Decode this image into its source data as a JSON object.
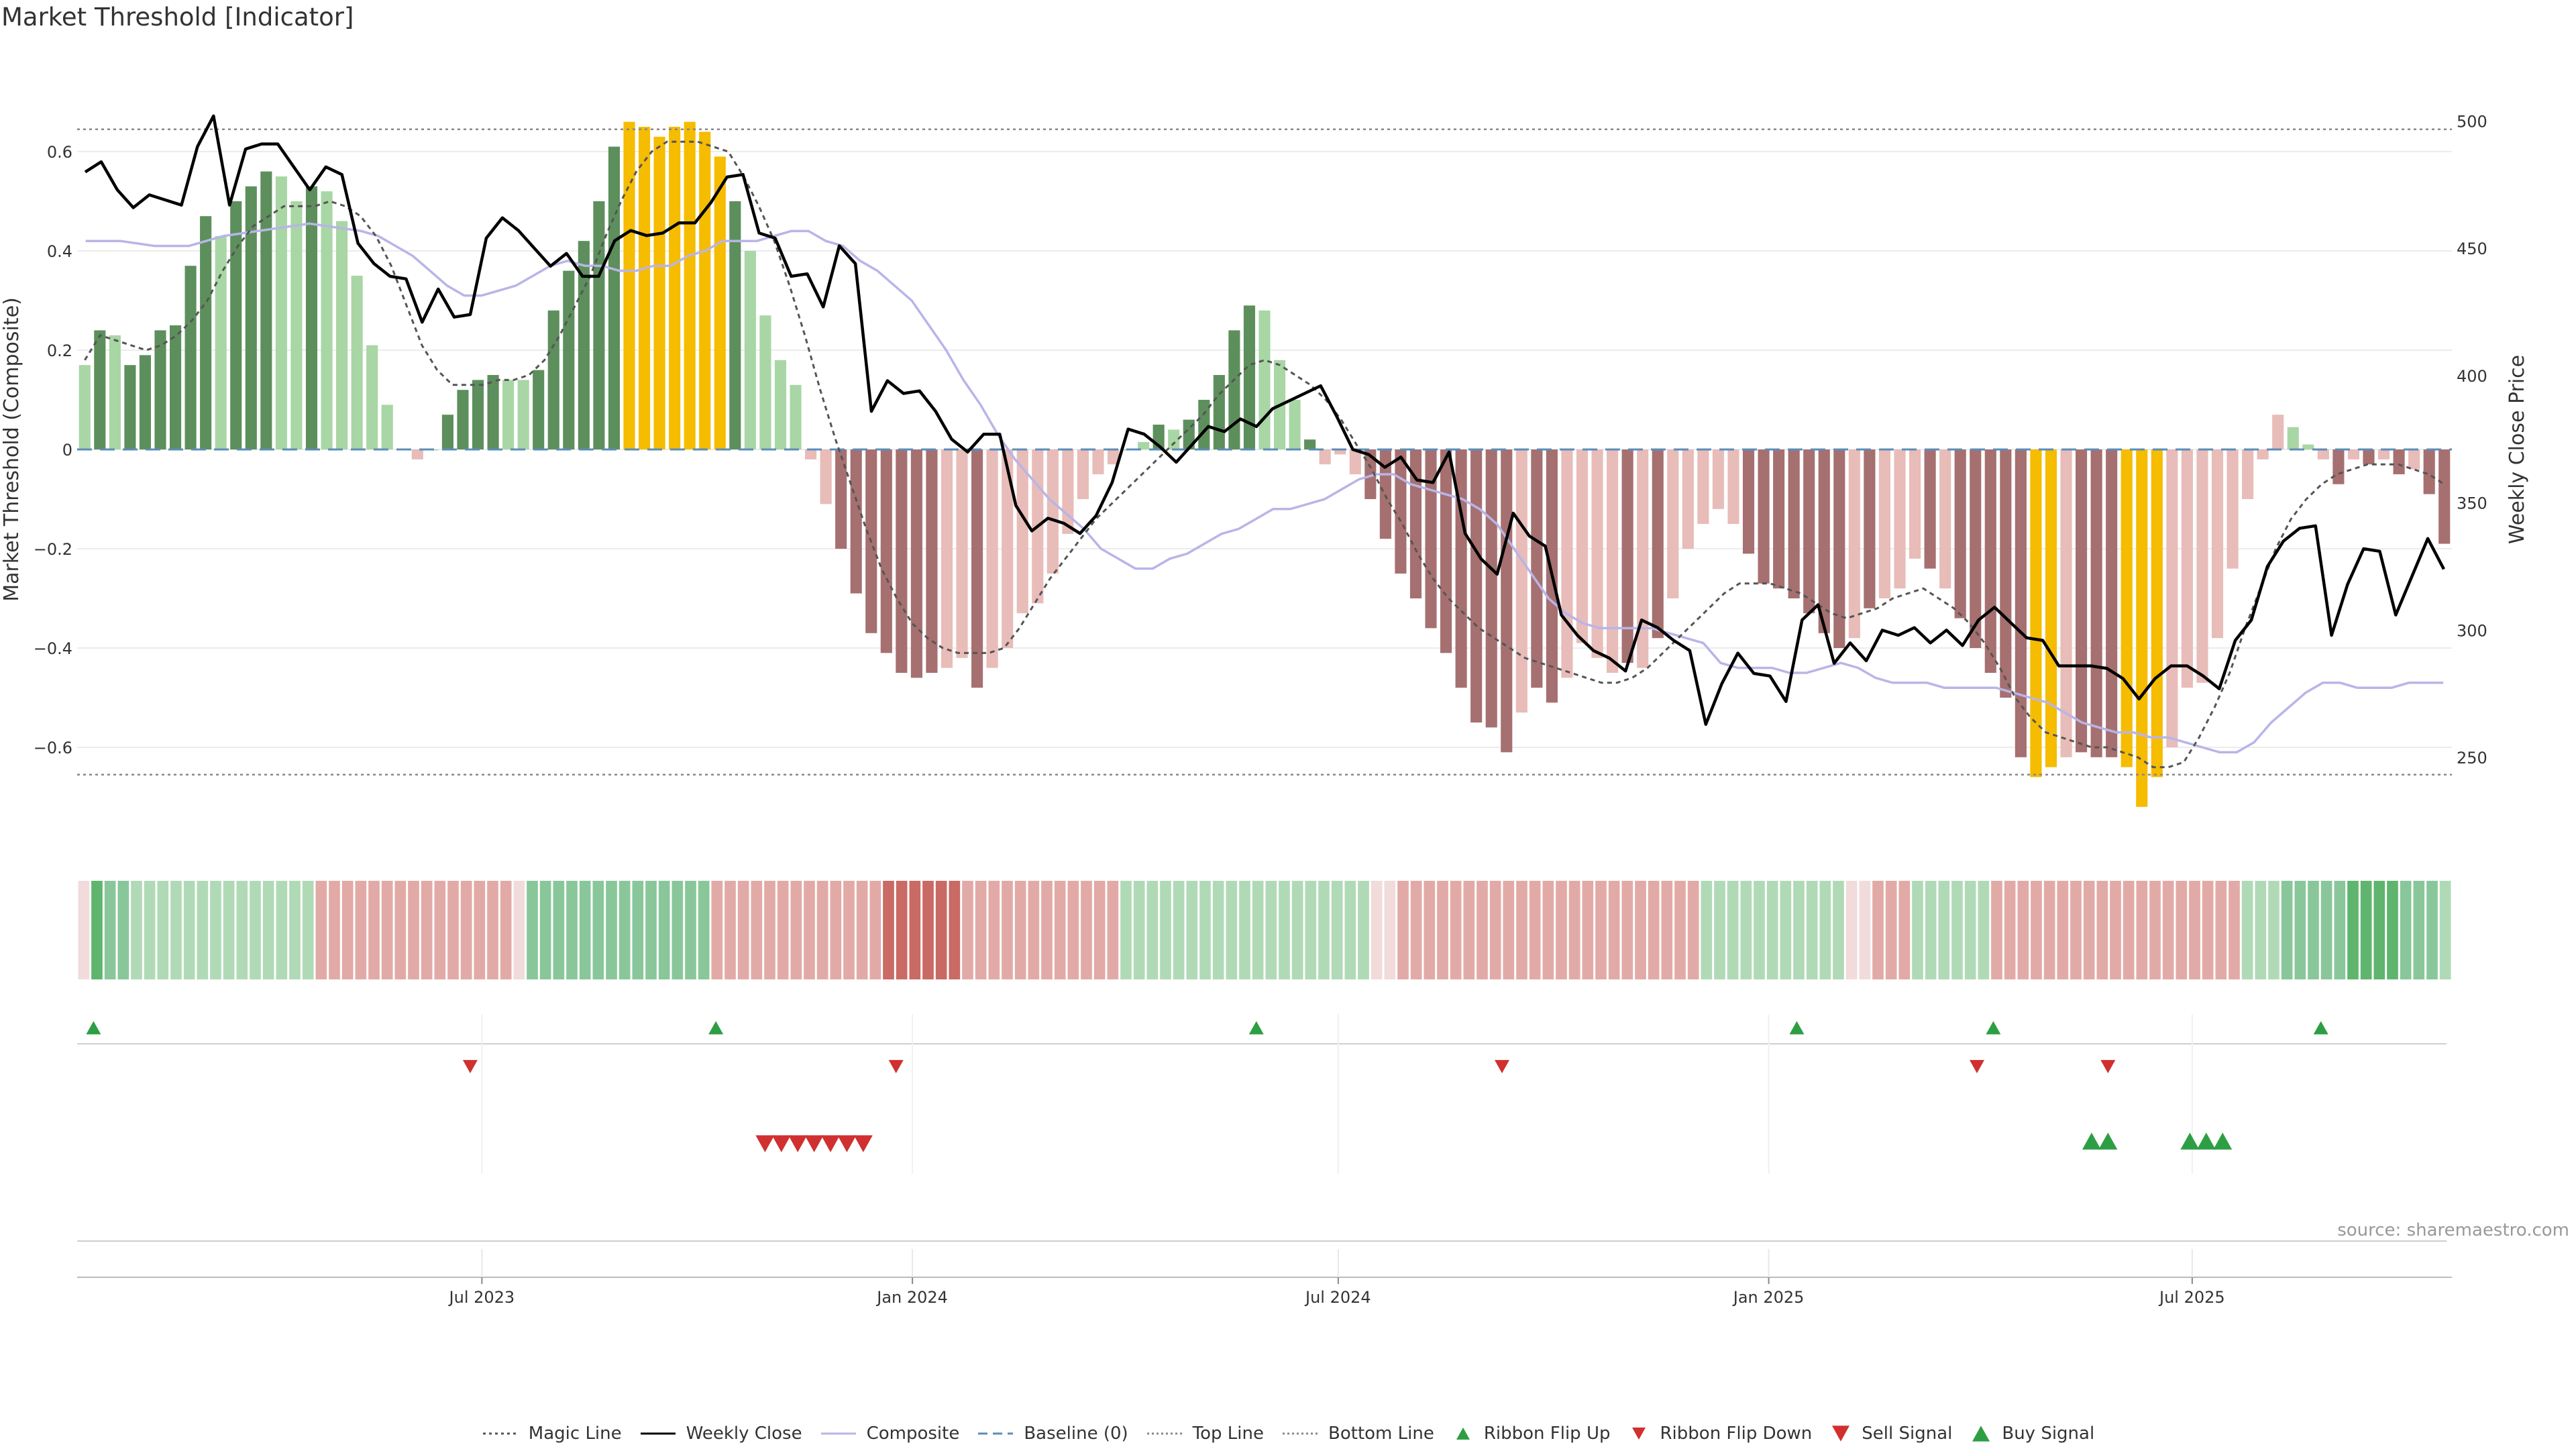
{
  "title": "Market Threshold [Indicator]",
  "source": "source: sharemaestro.com",
  "colors": {
    "strong_up": "#5d8f5d",
    "weak_up": "#a9d6a5",
    "strong_down": "#a67070",
    "weak_down": "#e8bcb8",
    "extreme": "#f5bc00",
    "magic": "#555555",
    "close": "#000000",
    "composite": "#b8b5e8",
    "baseline": "#5b8db8",
    "threshold": "#888888",
    "flip_up": "#2e9e44",
    "flip_down": "#d03030"
  },
  "chart_data": {
    "type": "bar",
    "title": "Market Threshold [Indicator]",
    "ylabel": "Market Threshold (Composite)",
    "y2label": "Weekly Close Price",
    "ylim": [
      -0.8,
      0.8
    ],
    "y2lim": [
      215,
      527
    ],
    "yticks": [
      -0.6,
      -0.4,
      -0.2,
      0,
      0.2,
      0.4,
      0.6
    ],
    "ytick_labels": [
      "−0.6",
      "−0.4",
      "−0.2",
      "0",
      "0.2",
      "0.4",
      "0.6"
    ],
    "y2ticks": [
      250,
      300,
      350,
      400,
      450,
      500
    ],
    "top_line": 0.645,
    "bottom_line": -0.655,
    "x_start": "2023-01-09",
    "x_end": "2025-10-20",
    "xticks": [
      "2023-07-01",
      "2024-01-01",
      "2024-07-01",
      "2025-01-01",
      "2025-07-01"
    ],
    "xtick_labels": [
      "Jul 2023",
      "Jan 2024",
      "Jul 2024",
      "Jan 2025",
      "Jul 2025"
    ],
    "bar_values": [
      0.17,
      0.24,
      0.23,
      0.17,
      0.19,
      0.24,
      0.25,
      0.37,
      0.47,
      0.43,
      0.5,
      0.53,
      0.56,
      0.55,
      0.5,
      0.53,
      0.52,
      0.46,
      0.35,
      0.21,
      0.09,
      0,
      -0.02,
      0,
      0.07,
      0.12,
      0.14,
      0.15,
      0.14,
      0.14,
      0.16,
      0.28,
      0.36,
      0.42,
      0.5,
      0.61,
      0.66,
      0.65,
      0.63,
      0.65,
      0.66,
      0.64,
      0.59,
      0.5,
      0.4,
      0.27,
      0.18,
      0.13,
      -0.02,
      -0.11,
      -0.2,
      -0.29,
      -0.37,
      -0.41,
      -0.45,
      -0.46,
      -0.45,
      -0.44,
      -0.42,
      -0.48,
      -0.44,
      -0.4,
      -0.33,
      -0.31,
      -0.25,
      -0.17,
      -0.1,
      -0.05,
      -0.03,
      0,
      0.015,
      0.05,
      0.04,
      0.06,
      0.1,
      0.15,
      0.24,
      0.29,
      0.28,
      0.18,
      0.1,
      0.02,
      -0.03,
      -0.01,
      -0.05,
      -0.1,
      -0.18,
      -0.25,
      -0.3,
      -0.36,
      -0.41,
      -0.48,
      -0.55,
      -0.56,
      -0.61,
      -0.53,
      -0.48,
      -0.51,
      -0.46,
      -0.39,
      -0.42,
      -0.45,
      -0.43,
      -0.44,
      -0.38,
      -0.3,
      -0.2,
      -0.15,
      -0.12,
      -0.15,
      -0.21,
      -0.27,
      -0.28,
      -0.3,
      -0.33,
      -0.37,
      -0.4,
      -0.38,
      -0.32,
      -0.3,
      -0.28,
      -0.22,
      -0.24,
      -0.28,
      -0.34,
      -0.4,
      -0.45,
      -0.5,
      -0.62,
      -0.66,
      -0.64,
      -0.62,
      -0.61,
      -0.62,
      -0.62,
      -0.64,
      -0.72,
      -0.66,
      -0.6,
      -0.48,
      -0.47,
      -0.38,
      -0.24,
      -0.1,
      -0.02,
      0.07,
      0.045,
      0.01,
      -0.02,
      -0.07,
      -0.02,
      -0.03,
      -0.02,
      -0.05,
      -0.04,
      -0.09,
      -0.19
    ],
    "bar_colors": [
      "L",
      "D",
      "L",
      "D",
      "D",
      "D",
      "D",
      "D",
      "D",
      "L",
      "D",
      "D",
      "D",
      "L",
      "L",
      "D",
      "L",
      "L",
      "L",
      "L",
      "L",
      "L",
      "Q",
      "L",
      "D",
      "D",
      "D",
      "D",
      "L",
      "L",
      "D",
      "D",
      "D",
      "D",
      "D",
      "D",
      "Y",
      "Y",
      "Y",
      "Y",
      "Y",
      "Y",
      "Y",
      "D",
      "L",
      "L",
      "L",
      "L",
      "Q",
      "Q",
      "R",
      "R",
      "R",
      "R",
      "R",
      "R",
      "R",
      "Q",
      "Q",
      "R",
      "Q",
      "Q",
      "Q",
      "Q",
      "Q",
      "Q",
      "Q",
      "Q",
      "Q",
      "L",
      "L",
      "D",
      "L",
      "D",
      "D",
      "D",
      "D",
      "D",
      "L",
      "L",
      "L",
      "D",
      "Q",
      "Q",
      "Q",
      "R",
      "R",
      "R",
      "R",
      "R",
      "R",
      "R",
      "R",
      "R",
      "R",
      "Q",
      "R",
      "R",
      "Q",
      "Q",
      "Q",
      "Q",
      "R",
      "Q",
      "R",
      "Q",
      "Q",
      "Q",
      "Q",
      "Q",
      "R",
      "R",
      "R",
      "R",
      "R",
      "R",
      "R",
      "Q",
      "R",
      "Q",
      "Q",
      "Q",
      "R",
      "Q",
      "R",
      "R",
      "R",
      "R",
      "R",
      "Y",
      "Y",
      "Q",
      "R",
      "R",
      "R",
      "Y",
      "Y",
      "Y",
      "Q",
      "Q",
      "Q",
      "Q",
      "Q",
      "Q",
      "Q",
      "Q",
      "L",
      "L",
      "Q",
      "R",
      "Q",
      "R",
      "Q",
      "R",
      "Q",
      "R",
      "R"
    ],
    "series": [
      {
        "name": "Magic Line",
        "axis": "left",
        "values": [
          0.18,
          0.23,
          0.22,
          0.21,
          0.2,
          0.21,
          0.23,
          0.26,
          0.3,
          0.36,
          0.41,
          0.45,
          0.47,
          0.49,
          0.49,
          0.49,
          0.5,
          0.49,
          0.47,
          0.43,
          0.37,
          0.29,
          0.21,
          0.16,
          0.13,
          0.13,
          0.13,
          0.14,
          0.14,
          0.15,
          0.18,
          0.23,
          0.29,
          0.35,
          0.43,
          0.5,
          0.56,
          0.6,
          0.62,
          0.62,
          0.62,
          0.61,
          0.6,
          0.55,
          0.49,
          0.42,
          0.33,
          0.23,
          0.12,
          0.02,
          -0.07,
          -0.16,
          -0.24,
          -0.3,
          -0.35,
          -0.38,
          -0.4,
          -0.41,
          -0.41,
          -0.41,
          -0.4,
          -0.36,
          -0.31,
          -0.26,
          -0.22,
          -0.18,
          -0.14,
          -0.11,
          -0.08,
          -0.05,
          -0.02,
          0.01,
          0.04,
          0.07,
          0.11,
          0.14,
          0.17,
          0.18,
          0.17,
          0.15,
          0.13,
          0.1,
          0.06,
          0.01,
          -0.04,
          -0.1,
          -0.15,
          -0.21,
          -0.26,
          -0.3,
          -0.33,
          -0.36,
          -0.38,
          -0.4,
          -0.42,
          -0.43,
          -0.44,
          -0.45,
          -0.46,
          -0.47,
          -0.47,
          -0.46,
          -0.44,
          -0.41,
          -0.38,
          -0.35,
          -0.32,
          -0.29,
          -0.27,
          -0.27,
          -0.27,
          -0.28,
          -0.29,
          -0.31,
          -0.33,
          -0.34,
          -0.33,
          -0.32,
          -0.3,
          -0.29,
          -0.28,
          -0.3,
          -0.32,
          -0.35,
          -0.39,
          -0.44,
          -0.5,
          -0.54,
          -0.57,
          -0.58,
          -0.59,
          -0.6,
          -0.6,
          -0.61,
          -0.62,
          -0.64,
          -0.64,
          -0.63,
          -0.58,
          -0.52,
          -0.45,
          -0.36,
          -0.28,
          -0.2,
          -0.14,
          -0.1,
          -0.07,
          -0.05,
          -0.04,
          -0.03,
          -0.03,
          -0.03,
          -0.04,
          -0.05,
          -0.07
        ]
      },
      {
        "name": "Weekly Close",
        "axis": "right",
        "values": [
          480,
          484,
          473,
          466,
          471,
          469,
          467,
          490,
          502,
          467,
          489,
          491,
          491,
          482,
          473,
          482,
          479,
          452,
          444,
          439,
          438,
          421,
          434,
          423,
          424,
          454,
          462,
          457,
          450,
          443,
          448,
          439,
          439,
          453,
          457,
          455,
          456,
          460,
          460,
          468,
          478,
          479,
          456,
          454,
          439,
          440,
          427,
          451,
          444,
          386,
          398,
          393,
          394,
          386,
          375,
          370,
          377,
          377,
          349,
          339,
          344,
          342,
          338,
          345,
          358,
          379,
          377,
          372,
          366,
          373,
          380,
          378,
          383,
          380,
          387,
          390,
          393,
          396,
          384,
          371,
          369,
          364,
          368,
          359,
          358,
          370,
          338,
          328,
          322,
          346,
          337,
          333,
          306,
          298,
          292,
          289,
          284,
          304,
          301,
          296,
          292,
          263,
          279,
          291,
          283,
          282,
          272,
          304,
          310,
          287,
          295,
          288,
          300,
          298,
          301,
          295,
          300,
          294,
          304,
          309,
          303,
          297,
          296,
          286,
          286,
          286,
          285,
          281,
          273,
          281,
          286,
          286,
          282,
          277,
          296,
          304,
          325,
          335,
          340,
          341,
          298,
          318,
          332,
          331,
          306,
          321,
          336,
          324
        ]
      },
      {
        "name": "Composite",
        "axis": "left",
        "values": [
          0.42,
          0.42,
          0.42,
          0.415,
          0.41,
          0.41,
          0.41,
          0.42,
          0.43,
          0.435,
          0.44,
          0.445,
          0.45,
          0.455,
          0.45,
          0.445,
          0.44,
          0.43,
          0.41,
          0.39,
          0.36,
          0.33,
          0.31,
          0.31,
          0.32,
          0.33,
          0.35,
          0.37,
          0.38,
          0.37,
          0.37,
          0.36,
          0.36,
          0.37,
          0.37,
          0.39,
          0.4,
          0.42,
          0.42,
          0.42,
          0.43,
          0.44,
          0.44,
          0.42,
          0.41,
          0.38,
          0.36,
          0.33,
          0.3,
          0.25,
          0.2,
          0.14,
          0.09,
          0.03,
          -0.02,
          -0.06,
          -0.1,
          -0.13,
          -0.16,
          -0.2,
          -0.22,
          -0.24,
          -0.24,
          -0.22,
          -0.21,
          -0.19,
          -0.17,
          -0.16,
          -0.14,
          -0.12,
          -0.12,
          -0.11,
          -0.1,
          -0.08,
          -0.06,
          -0.05,
          -0.05,
          -0.07,
          -0.08,
          -0.09,
          -0.1,
          -0.12,
          -0.15,
          -0.2,
          -0.25,
          -0.3,
          -0.33,
          -0.35,
          -0.36,
          -0.36,
          -0.36,
          -0.36,
          -0.37,
          -0.38,
          -0.39,
          -0.43,
          -0.44,
          -0.44,
          -0.44,
          -0.45,
          -0.45,
          -0.44,
          -0.43,
          -0.44,
          -0.46,
          -0.47,
          -0.47,
          -0.47,
          -0.48,
          -0.48,
          -0.48,
          -0.48,
          -0.49,
          -0.5,
          -0.51,
          -0.53,
          -0.55,
          -0.56,
          -0.57,
          -0.57,
          -0.58,
          -0.58,
          -0.59,
          -0.6,
          -0.61,
          -0.61,
          -0.59,
          -0.55,
          -0.52,
          -0.49,
          -0.47,
          -0.47,
          -0.48,
          -0.48,
          -0.48,
          -0.47,
          -0.47,
          -0.47
        ]
      },
      {
        "name": "Baseline (0)",
        "axis": "left",
        "values": [
          0
        ]
      },
      {
        "name": "Top Line",
        "axis": "left",
        "values": [
          0.645
        ]
      },
      {
        "name": "Bottom Line",
        "axis": "left",
        "values": [
          -0.655
        ]
      }
    ],
    "ribbon": {
      "colors": [
        "P",
        "D",
        "M",
        "M",
        "L",
        "L",
        "L",
        "L",
        "L",
        "L",
        "L",
        "L",
        "L",
        "L",
        "L",
        "L",
        "L",
        "L",
        "R",
        "R",
        "R",
        "R",
        "R",
        "R",
        "R",
        "R",
        "R",
        "R",
        "R",
        "R",
        "R",
        "R",
        "R",
        "P",
        "M",
        "M",
        "M",
        "M",
        "M",
        "M",
        "M",
        "M",
        "M",
        "M",
        "M",
        "M",
        "M",
        "M",
        "R",
        "R",
        "R",
        "R",
        "R",
        "R",
        "R",
        "R",
        "R",
        "R",
        "R",
        "R",
        "R",
        "X",
        "X",
        "X",
        "X",
        "X",
        "X",
        "R",
        "R",
        "R",
        "R",
        "R",
        "R",
        "R",
        "R",
        "R",
        "R",
        "R",
        "R",
        "L",
        "L",
        "L",
        "L",
        "L",
        "L",
        "L",
        "L",
        "L",
        "L",
        "L",
        "L",
        "L",
        "L",
        "L",
        "L",
        "L",
        "L",
        "L",
        "P",
        "P",
        "R",
        "R",
        "R",
        "R",
        "R",
        "R",
        "R",
        "R",
        "R",
        "R",
        "R",
        "R",
        "R",
        "R",
        "R",
        "R",
        "R",
        "R",
        "R",
        "R",
        "R",
        "R",
        "R",
        "L",
        "L",
        "L",
        "L",
        "L",
        "L",
        "L",
        "L",
        "L",
        "L",
        "L",
        "P",
        "P",
        "R",
        "R",
        "R",
        "L",
        "L",
        "L",
        "L",
        "L",
        "L",
        "R",
        "R",
        "R",
        "R",
        "R",
        "R",
        "R",
        "R",
        "R",
        "R",
        "R",
        "R",
        "R",
        "R",
        "R",
        "R",
        "R",
        "R",
        "R",
        "L",
        "L",
        "L",
        "M",
        "M",
        "M",
        "M",
        "M",
        "D",
        "D",
        "D",
        "D",
        "M",
        "M",
        "M",
        "L"
      ]
    },
    "ribbon_flip_up": [
      "2023-01-16",
      "2023-10-09",
      "2024-05-27",
      "2025-01-13",
      "2025-04-07",
      "2025-08-25"
    ],
    "ribbon_flip_down": [
      "2023-06-26",
      "2023-12-25",
      "2024-09-09",
      "2025-03-31",
      "2025-05-26"
    ],
    "sell_signal": [
      "2023-10-30",
      "2023-11-06",
      "2023-11-13",
      "2023-11-20",
      "2023-11-27",
      "2023-12-04",
      "2023-12-11"
    ],
    "buy_signal": [
      "2025-05-19",
      "2025-05-26",
      "2025-06-30",
      "2025-07-07",
      "2025-07-14"
    ],
    "legend": [
      "Magic Line",
      "Weekly Close",
      "Composite",
      "Baseline (0)",
      "Top Line",
      "Bottom Line",
      "Ribbon Flip Up",
      "Ribbon Flip Down",
      "Sell Signal",
      "Buy Signal"
    ]
  }
}
